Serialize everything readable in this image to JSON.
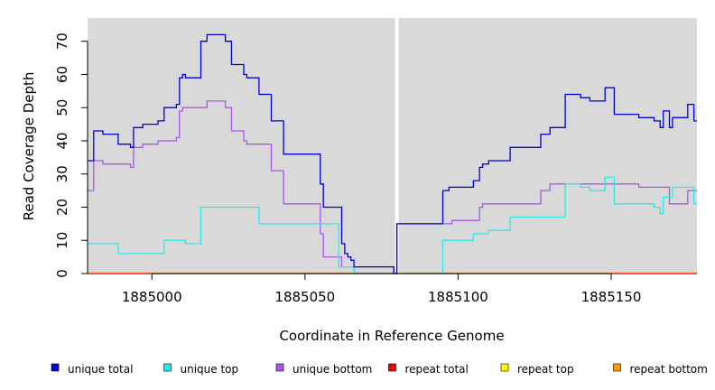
{
  "chart_data": {
    "type": "line",
    "xlabel": "Coordinate in Reference Genome",
    "ylabel": "Read Coverage Depth",
    "xlim": [
      1884979,
      1885178
    ],
    "ylim": [
      0,
      77
    ],
    "x_ticks": [
      1885000,
      1885050,
      1885100,
      1885150
    ],
    "y_ticks": [
      0,
      10,
      20,
      30,
      40,
      50,
      60,
      70
    ],
    "gap_at": 1885080,
    "grid": false,
    "legend_placement": "bottom",
    "series": [
      {
        "name": "unique total",
        "color": "#0000dd",
        "step_points": [
          [
            1884979,
            34
          ],
          [
            1884981,
            43
          ],
          [
            1884984,
            42
          ],
          [
            1884989,
            39
          ],
          [
            1884993,
            38
          ],
          [
            1884994,
            44
          ],
          [
            1884997,
            45
          ],
          [
            1885002,
            46
          ],
          [
            1885004,
            50
          ],
          [
            1885008,
            51
          ],
          [
            1885009,
            59
          ],
          [
            1885010,
            60
          ],
          [
            1885011,
            59
          ],
          [
            1885016,
            70
          ],
          [
            1885018,
            72
          ],
          [
            1885024,
            70
          ],
          [
            1885026,
            63
          ],
          [
            1885030,
            60
          ],
          [
            1885031,
            59
          ],
          [
            1885035,
            54
          ],
          [
            1885039,
            46
          ],
          [
            1885043,
            36
          ],
          [
            1885055,
            27
          ],
          [
            1885056,
            20
          ],
          [
            1885062,
            9
          ],
          [
            1885063,
            6
          ],
          [
            1885064,
            5
          ],
          [
            1885065,
            4
          ],
          [
            1885066,
            2
          ],
          [
            1885079,
            0
          ],
          [
            1885080,
            15
          ],
          [
            1885095,
            25
          ],
          [
            1885097,
            26
          ],
          [
            1885105,
            28
          ],
          [
            1885107,
            32
          ],
          [
            1885108,
            33
          ],
          [
            1885110,
            34
          ],
          [
            1885117,
            38
          ],
          [
            1885127,
            42
          ],
          [
            1885130,
            44
          ],
          [
            1885135,
            54
          ],
          [
            1885140,
            53
          ],
          [
            1885143,
            52
          ],
          [
            1885148,
            56
          ],
          [
            1885151,
            48
          ],
          [
            1885159,
            47
          ],
          [
            1885164,
            46
          ],
          [
            1885166,
            44
          ],
          [
            1885167,
            49
          ],
          [
            1885169,
            44
          ],
          [
            1885170,
            47
          ],
          [
            1885175,
            51
          ],
          [
            1885177,
            46
          ],
          [
            1885178,
            46
          ]
        ]
      },
      {
        "name": "unique top",
        "color": "#33e6e6",
        "step_points": [
          [
            1884979,
            9
          ],
          [
            1884989,
            6
          ],
          [
            1885004,
            10
          ],
          [
            1885011,
            9
          ],
          [
            1885016,
            20
          ],
          [
            1885035,
            15
          ],
          [
            1885061,
            2
          ],
          [
            1885066,
            0
          ],
          [
            1885095,
            10
          ],
          [
            1885105,
            12
          ],
          [
            1885110,
            13
          ],
          [
            1885117,
            17
          ],
          [
            1885135,
            27
          ],
          [
            1885140,
            26
          ],
          [
            1885143,
            25
          ],
          [
            1885148,
            29
          ],
          [
            1885151,
            21
          ],
          [
            1885164,
            20
          ],
          [
            1885166,
            18
          ],
          [
            1885167,
            23
          ],
          [
            1885170,
            26
          ],
          [
            1885177,
            21
          ],
          [
            1885178,
            21
          ]
        ]
      },
      {
        "name": "unique bottom",
        "color": "#aa55ee",
        "step_points": [
          [
            1884979,
            25
          ],
          [
            1884981,
            34
          ],
          [
            1884984,
            33
          ],
          [
            1884993,
            32
          ],
          [
            1884994,
            38
          ],
          [
            1884997,
            39
          ],
          [
            1885002,
            40
          ],
          [
            1885008,
            41
          ],
          [
            1885009,
            49
          ],
          [
            1885010,
            50
          ],
          [
            1885018,
            52
          ],
          [
            1885024,
            50
          ],
          [
            1885026,
            43
          ],
          [
            1885030,
            40
          ],
          [
            1885031,
            39
          ],
          [
            1885039,
            31
          ],
          [
            1885043,
            21
          ],
          [
            1885055,
            12
          ],
          [
            1885056,
            5
          ],
          [
            1885062,
            2
          ],
          [
            1885066,
            0
          ],
          [
            1885080,
            15
          ],
          [
            1885095,
            15
          ],
          [
            1885098,
            16
          ],
          [
            1885107,
            20
          ],
          [
            1885108,
            21
          ],
          [
            1885127,
            25
          ],
          [
            1885130,
            27
          ],
          [
            1885159,
            26
          ],
          [
            1885169,
            21
          ],
          [
            1885175,
            25
          ],
          [
            1885178,
            25
          ]
        ]
      },
      {
        "name": "repeat total",
        "color": "#ee0000",
        "step_points": [
          [
            1884979,
            0
          ],
          [
            1885178,
            0
          ]
        ]
      },
      {
        "name": "repeat top",
        "color": "#ffff00",
        "step_points": [
          [
            1884979,
            0
          ],
          [
            1885178,
            0
          ]
        ]
      },
      {
        "name": "repeat bottom",
        "color": "#ff9900",
        "step_points": [
          [
            1884979,
            0
          ],
          [
            1885178,
            0
          ]
        ]
      }
    ]
  }
}
